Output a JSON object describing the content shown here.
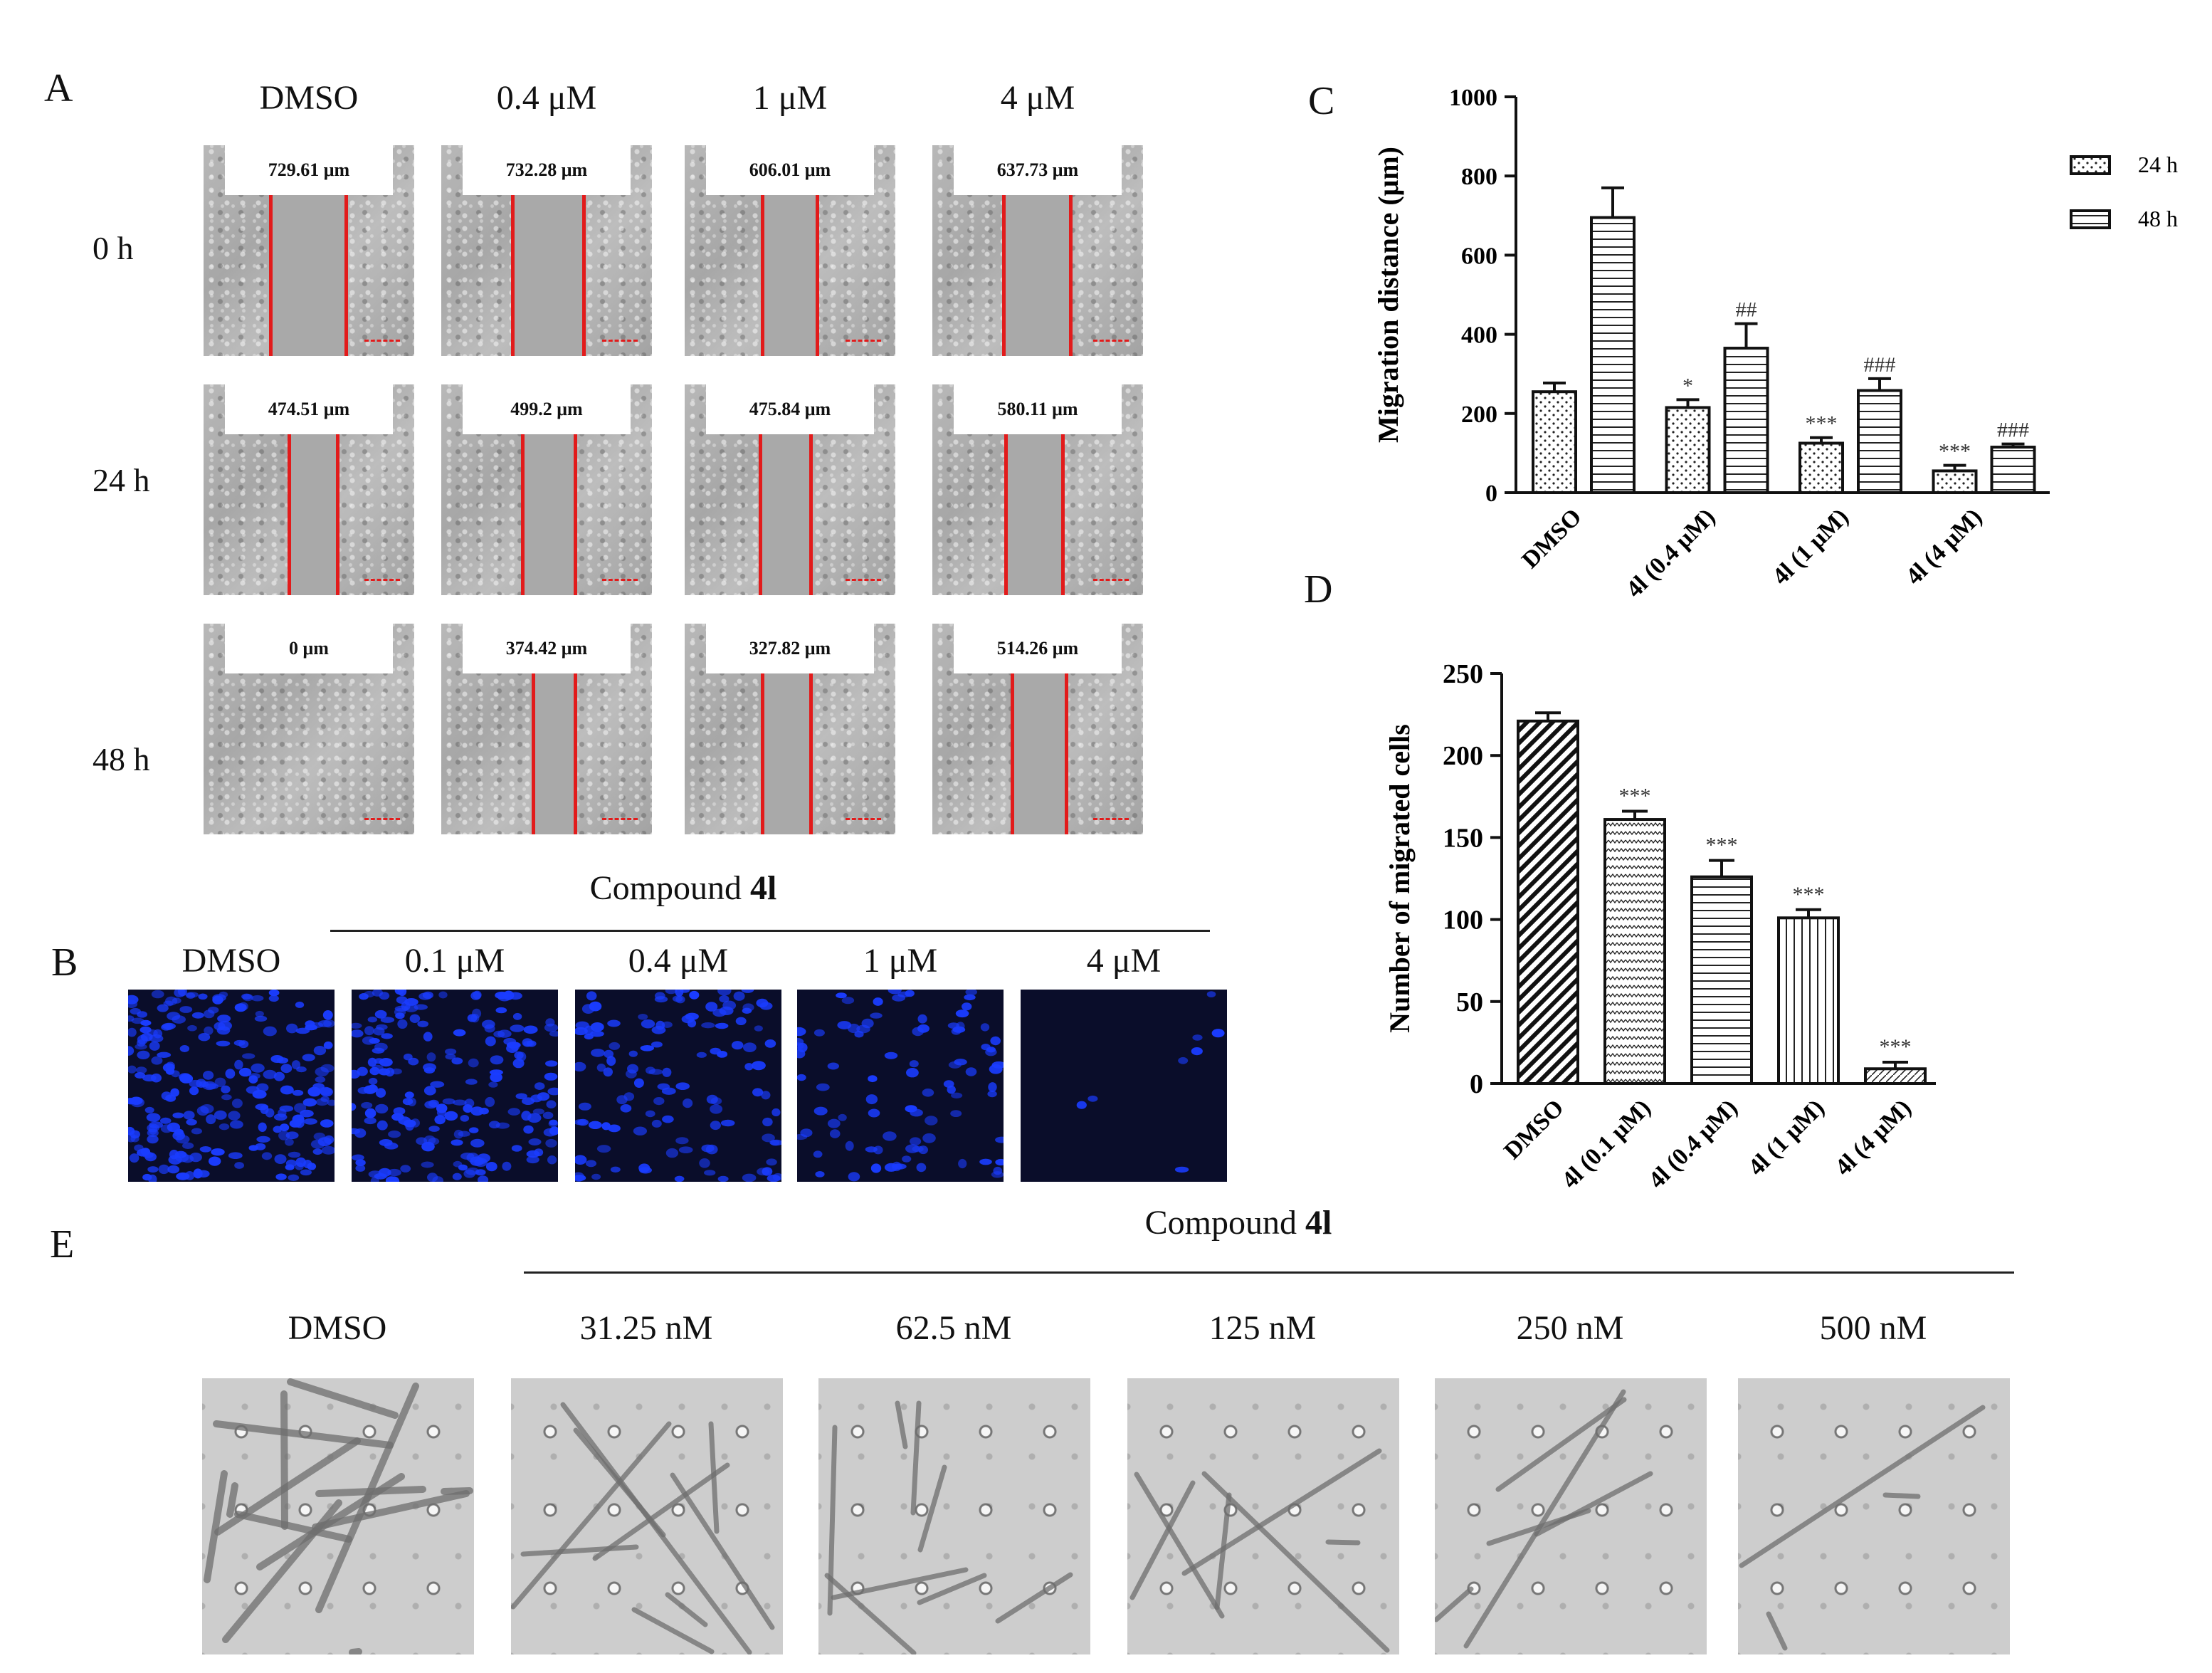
{
  "panels": {
    "a": "A",
    "b": "B",
    "c": "C",
    "d": "D",
    "e": "E"
  },
  "panel_a": {
    "columns": [
      "DMSO",
      "0.4 μM",
      "1 μM",
      "4 μM"
    ],
    "rows": [
      "0 h",
      "24 h",
      "48 h"
    ],
    "distances": [
      [
        "729.61 μm",
        "732.28 μm",
        "606.01 μm",
        "637.73 μm"
      ],
      [
        "474.51 μm",
        "499.2 μm",
        "475.84 μm",
        "580.11 μm"
      ],
      [
        "0 μm",
        "374.42 μm",
        "327.82 μm",
        "514.26 μm"
      ]
    ],
    "image_colors": {
      "background": "#b0b0b0",
      "line": "#e21b1b"
    }
  },
  "panel_b": {
    "header_prefix": "Compound ",
    "header_bold": "4l",
    "columns": [
      "DMSO",
      "0.1 μM",
      "0.4 μM",
      "1 μM",
      "4 μM"
    ],
    "image_colors": {
      "background": "#0a0d2a",
      "nuclei": "#1a3cff"
    }
  },
  "panel_e": {
    "header_prefix": "Compound ",
    "header_bold": "4l",
    "columns": [
      "DMSO",
      "31.25 nM",
      "62.5 nM",
      "125 nM",
      "250 nM",
      "500 nM"
    ]
  },
  "chart_data": [
    {
      "id": "C",
      "type": "bar",
      "ylabel": "Migration distance (μm)",
      "ylim": [
        0,
        1000
      ],
      "yticks": [
        0,
        200,
        400,
        600,
        800,
        1000
      ],
      "categories": [
        "DMSO",
        "4l (0.4 μM)",
        "4l (1 μM)",
        "4l (4 μM)"
      ],
      "series": [
        {
          "name": "24 h",
          "pattern": "dots",
          "values": [
            255,
            215,
            125,
            55
          ],
          "errors": [
            22,
            20,
            14,
            14
          ],
          "annotations": [
            "",
            "*",
            "***",
            "***"
          ]
        },
        {
          "name": "48 h",
          "pattern": "hlines",
          "values": [
            695,
            365,
            258,
            115
          ],
          "errors": [
            75,
            62,
            30,
            8
          ],
          "annotations": [
            "",
            "##",
            "###",
            "###"
          ]
        }
      ],
      "legend": "right",
      "grid": false
    },
    {
      "id": "D",
      "type": "bar",
      "ylabel": "Number of migrated cells",
      "ylim": [
        0,
        250
      ],
      "yticks": [
        0,
        50,
        100,
        150,
        200,
        250
      ],
      "categories": [
        "DMSO",
        "4l (0.1 μM)",
        "4l (0.4 μM)",
        "4l (1 μM)",
        "4l (4 μM)"
      ],
      "values": [
        221,
        161,
        126,
        101,
        9
      ],
      "errors": [
        5,
        5,
        10,
        5,
        4
      ],
      "annotations": [
        "",
        "***",
        "***",
        "***",
        "***"
      ],
      "patterns": [
        "diag-bold",
        "zigzag",
        "hlines",
        "vlines",
        "diag-fine"
      ],
      "grid": false
    }
  ]
}
